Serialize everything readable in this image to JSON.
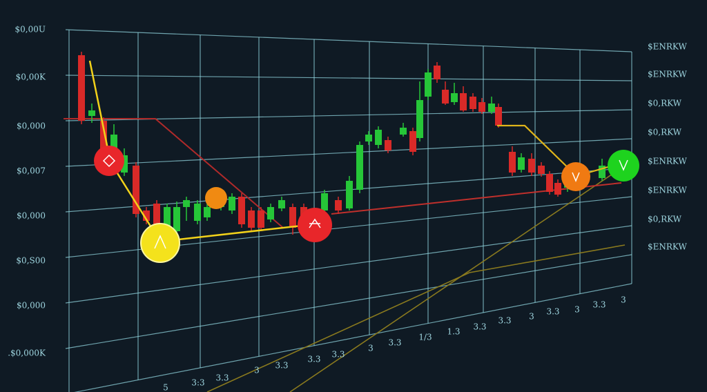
{
  "left_labels": [
    "$0,00U",
    "$0,00K",
    "$0,000",
    "$0,007",
    "$0,000",
    "$0,S00",
    "$0,000",
    ".$0,000K"
  ],
  "right_labels": [
    "$ENRKW",
    "$ENRKW",
    "$0,RKW",
    "$0,RKW",
    "$ENRKW",
    "$ENRKW",
    "$0,RKW",
    "$ENRKW"
  ],
  "bottom_labels": [
    "5",
    "3:3",
    "3.3",
    "3",
    "3.3",
    "3.3",
    "3.3",
    "3",
    "3.3",
    "1/3",
    "1.3",
    "3.3",
    "3.3",
    "3",
    "3.3",
    "3",
    "3.3",
    "3"
  ]
}
